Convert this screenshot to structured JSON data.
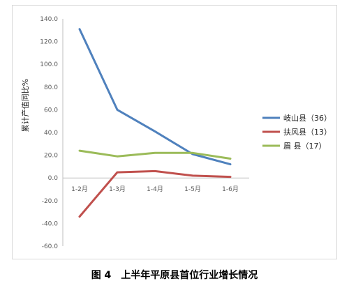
{
  "caption": "图 4　上半年平原县首位行业增长情况",
  "chart_data": {
    "type": "line",
    "ylabel": "累计产值同比%",
    "categories": [
      "1-2月",
      "1-3月",
      "1-4月",
      "1-5月",
      "1-6月"
    ],
    "ylim": [
      -60,
      140
    ],
    "yticks": [
      140,
      120,
      100,
      80,
      60,
      40,
      20,
      0,
      -20,
      -40,
      -60
    ],
    "ytick_labels": [
      "140.0",
      "120.0",
      "100.0",
      "80.0",
      "60.0",
      "40.0",
      "20.0",
      "0.0",
      "-20.0",
      "-40.0",
      "-60.0"
    ],
    "grid": false,
    "legend_position": "right",
    "series": [
      {
        "name": "岐山县（36）",
        "color": "#4f81bd",
        "values": [
          131,
          60,
          41,
          21,
          12
        ]
      },
      {
        "name": "扶风县（13）",
        "color": "#c0504d",
        "values": [
          -34,
          5,
          6,
          2,
          1
        ]
      },
      {
        "name": "眉 县（17）",
        "color": "#9bbb59",
        "values": [
          24,
          19,
          22,
          22,
          17
        ]
      }
    ]
  }
}
